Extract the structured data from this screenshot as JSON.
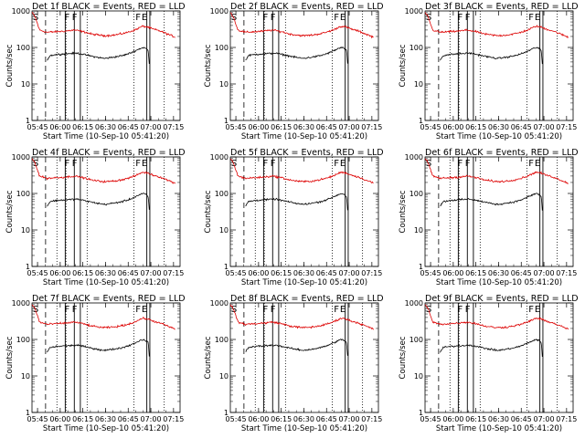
{
  "chart_data": [
    {
      "type": "line",
      "title": "Det 1f BLACK = Events, RED = LLD"
    },
    {
      "type": "line",
      "title": "Det 2f BLACK = Events, RED = LLD"
    },
    {
      "type": "line",
      "title": "Det 3f BLACK = Events, RED = LLD"
    },
    {
      "type": "line",
      "title": "Det 4f BLACK = Events, RED = LLD"
    },
    {
      "type": "line",
      "title": "Det 5f BLACK = Events, RED = LLD"
    },
    {
      "type": "line",
      "title": "Det 6f BLACK = Events, RED = LLD"
    },
    {
      "type": "line",
      "title": "Det 7f BLACK = Events, RED = LLD"
    },
    {
      "type": "line",
      "title": "Det 8f BLACK = Events, RED = LLD"
    },
    {
      "type": "line",
      "title": "Det 9f BLACK = Events, RED = LLD"
    }
  ],
  "common": {
    "ylabel": "Counts/sec",
    "xlabel": "Start Time (10-Sep-10 05:41:20)",
    "x_ticks": [
      "05:45",
      "06:00",
      "06:15",
      "06:30",
      "06:45",
      "07:00",
      "07:15"
    ],
    "x_tick_minutes": [
      3.67,
      18.67,
      33.67,
      48.67,
      63.67,
      78.67,
      93.67
    ],
    "x_range_minutes": [
      0,
      98
    ],
    "y_ticks": [
      "1",
      "10",
      "100",
      "1000"
    ],
    "y_scale": "log",
    "ylim": [
      1,
      1000
    ],
    "markers": [
      {
        "text": "S",
        "minutes": 0.5
      },
      {
        "text": "F",
        "minutes": 21.5
      },
      {
        "text": "F",
        "minutes": 26.5
      },
      {
        "text": "F",
        "minutes": 68.5
      },
      {
        "text": "E",
        "minutes": 72.5
      }
    ],
    "vlines": {
      "dashed_minutes": [
        9
      ],
      "dotted_minutes": [
        16.5,
        22.5,
        36.5,
        67.5,
        87.5
      ],
      "solid_minutes": [
        22,
        28,
        32,
        76,
        78
      ]
    },
    "series": [
      {
        "name": "BLACK = Events",
        "color": "#000000"
      },
      {
        "name": "RED = LLD",
        "color": "#dd0000"
      }
    ],
    "events_profile": {
      "minutes": [
        10,
        12,
        16,
        20,
        25,
        30,
        36,
        42,
        48,
        55,
        60,
        65,
        68,
        72,
        74,
        76,
        77,
        78
      ],
      "counts": [
        45,
        60,
        64,
        66,
        68,
        70,
        62,
        55,
        50,
        55,
        60,
        70,
        80,
        95,
        100,
        90,
        80,
        20
      ]
    },
    "lld_profile": {
      "minutes": [
        0,
        2,
        5,
        10,
        16,
        22,
        28,
        34,
        40,
        48,
        55,
        62,
        68,
        73,
        76,
        80,
        85,
        90,
        95
      ],
      "counts": [
        900,
        700,
        300,
        260,
        270,
        280,
        300,
        270,
        230,
        210,
        220,
        250,
        300,
        380,
        370,
        320,
        280,
        230,
        190
      ]
    }
  }
}
